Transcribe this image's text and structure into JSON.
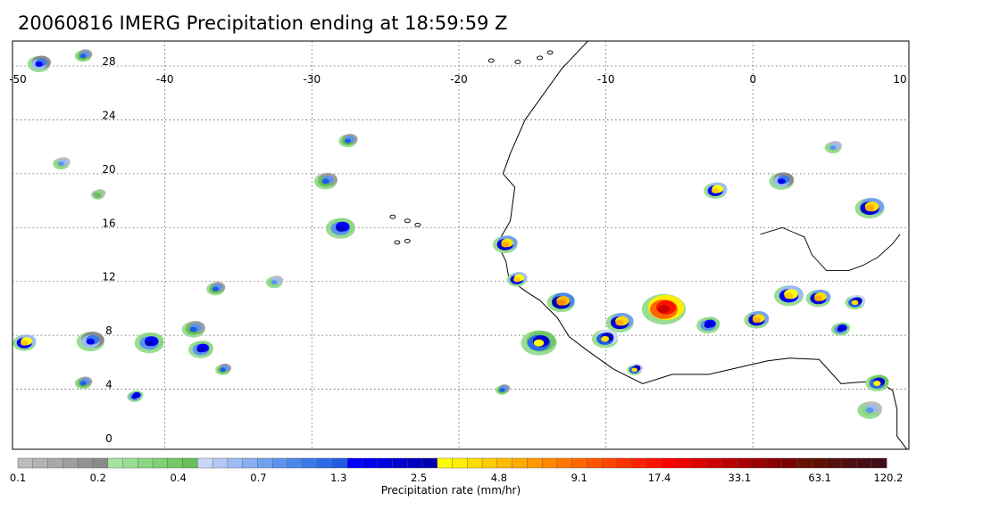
{
  "title": "20060816 IMERG Precipitation ending at 18:59:59 Z",
  "map": {
    "lon_range": [
      -50,
      10
    ],
    "lat_range": [
      -0.3,
      29.5
    ],
    "lon_ticks": [
      "-50",
      "-40",
      "-30",
      "-20",
      "-10",
      "0",
      "10"
    ],
    "lat_ticks": [
      "0",
      "4",
      "8",
      "12",
      "16",
      "20",
      "24",
      "28"
    ],
    "grid": "dotted",
    "projection": "lat-lon"
  },
  "colorbar": {
    "label": "Precipitation rate (mm/hr)",
    "tick_labels": [
      "0.1",
      "0.2",
      "0.4",
      "0.7",
      "1.3",
      "2.5",
      "4.8",
      "9.1",
      "17.4",
      "33.1",
      "63.1",
      "120.2"
    ],
    "colors": [
      "#bdbdbd",
      "#b2b2b2",
      "#a8a8a8",
      "#9e9e9e",
      "#949494",
      "#8a8a8a",
      "#a6e3a1",
      "#99dd92",
      "#8cd683",
      "#7fcf74",
      "#72c865",
      "#66c056",
      "#c9d7f5",
      "#b3c8f4",
      "#9dbbf3",
      "#87aef2",
      "#71a1f0",
      "#5b94ee",
      "#4a86ec",
      "#3b78ea",
      "#2c6ae8",
      "#1f5ce6",
      "#0000ff",
      "#0000f0",
      "#0000e0",
      "#0000d0",
      "#0000c0",
      "#0000b0",
      "#ffff00",
      "#ffee00",
      "#ffdd00",
      "#ffcc00",
      "#ffbb00",
      "#ffaa00",
      "#ff9900",
      "#ff8800",
      "#ff7700",
      "#ff6600",
      "#ff5500",
      "#ff4400",
      "#ff3300",
      "#ff2200",
      "#ff1100",
      "#ff0000",
      "#ee0000",
      "#dd0000",
      "#cc0000",
      "#bb0000",
      "#aa0000",
      "#990000",
      "#880000",
      "#770000",
      "#661100",
      "#5e1005",
      "#560f0a",
      "#4e0e0f",
      "#460d14",
      "#3e0c19"
    ]
  },
  "precip_cells": [
    {
      "lon": -48.5,
      "lat": 28.2,
      "size": 1.2,
      "max": 2.0
    },
    {
      "lon": -45.5,
      "lat": 28.8,
      "size": 0.8,
      "max": 1.5
    },
    {
      "lon": -49.5,
      "lat": 7.5,
      "size": 1.2,
      "max": 6.0
    },
    {
      "lon": -45.0,
      "lat": 7.6,
      "size": 1.5,
      "max": 2.0
    },
    {
      "lon": -41.0,
      "lat": 7.5,
      "size": 1.6,
      "max": 3.0
    },
    {
      "lon": -37.5,
      "lat": 7.0,
      "size": 1.3,
      "max": 3.0
    },
    {
      "lon": -38.0,
      "lat": 8.5,
      "size": 1.2,
      "max": 1.5
    },
    {
      "lon": -45.5,
      "lat": 4.5,
      "size": 0.8,
      "max": 1.5
    },
    {
      "lon": -42.0,
      "lat": 3.5,
      "size": 0.7,
      "max": 3.0
    },
    {
      "lon": -36.5,
      "lat": 11.5,
      "size": 0.9,
      "max": 1.5
    },
    {
      "lon": -32.5,
      "lat": 12.0,
      "size": 0.8,
      "max": 1.0
    },
    {
      "lon": -28.0,
      "lat": 16.0,
      "size": 1.6,
      "max": 3.0
    },
    {
      "lon": -29.0,
      "lat": 19.5,
      "size": 1.2,
      "max": 1.5
    },
    {
      "lon": -27.5,
      "lat": 22.5,
      "size": 0.9,
      "max": 1.5
    },
    {
      "lon": -44.5,
      "lat": 18.5,
      "size": 0.6,
      "max": 0.5
    },
    {
      "lon": -47.0,
      "lat": 20.8,
      "size": 0.8,
      "max": 1.0
    },
    {
      "lon": -16.8,
      "lat": 14.8,
      "size": 1.3,
      "max": 8.0
    },
    {
      "lon": -16.0,
      "lat": 12.2,
      "size": 1.0,
      "max": 6.0
    },
    {
      "lon": -13.0,
      "lat": 10.5,
      "size": 1.5,
      "max": 10.0
    },
    {
      "lon": -6.0,
      "lat": 10.0,
      "size": 2.5,
      "max": 40.0
    },
    {
      "lon": -9.0,
      "lat": 9.0,
      "size": 1.5,
      "max": 8.0
    },
    {
      "lon": -10.0,
      "lat": 7.8,
      "size": 1.4,
      "max": 5.0
    },
    {
      "lon": -14.5,
      "lat": 7.5,
      "size": 2.0,
      "max": 4.0
    },
    {
      "lon": -8.0,
      "lat": 5.5,
      "size": 0.7,
      "max": 5.0
    },
    {
      "lon": -3.0,
      "lat": 8.8,
      "size": 1.2,
      "max": 3.0
    },
    {
      "lon": 0.3,
      "lat": 9.2,
      "size": 1.3,
      "max": 8.0
    },
    {
      "lon": 2.5,
      "lat": 11.0,
      "size": 1.6,
      "max": 6.0
    },
    {
      "lon": 4.5,
      "lat": 10.8,
      "size": 1.3,
      "max": 8.0
    },
    {
      "lon": 7.0,
      "lat": 10.5,
      "size": 1.0,
      "max": 5.0
    },
    {
      "lon": 6.0,
      "lat": 8.5,
      "size": 0.9,
      "max": 3.0
    },
    {
      "lon": -2.5,
      "lat": 18.8,
      "size": 1.2,
      "max": 6.0
    },
    {
      "lon": 2.0,
      "lat": 19.5,
      "size": 1.3,
      "max": 2.0
    },
    {
      "lon": 8.0,
      "lat": 17.5,
      "size": 1.6,
      "max": 8.0
    },
    {
      "lon": 5.5,
      "lat": 22.0,
      "size": 0.8,
      "max": 1.0
    },
    {
      "lon": 8.5,
      "lat": 4.5,
      "size": 1.2,
      "max": 4.0
    },
    {
      "lon": 8.0,
      "lat": 2.5,
      "size": 1.3,
      "max": 1.0
    },
    {
      "lon": -17.0,
      "lat": 4.0,
      "size": 0.6,
      "max": 1.5
    },
    {
      "lon": -36.0,
      "lat": 5.5,
      "size": 0.7,
      "max": 1.5
    }
  ]
}
